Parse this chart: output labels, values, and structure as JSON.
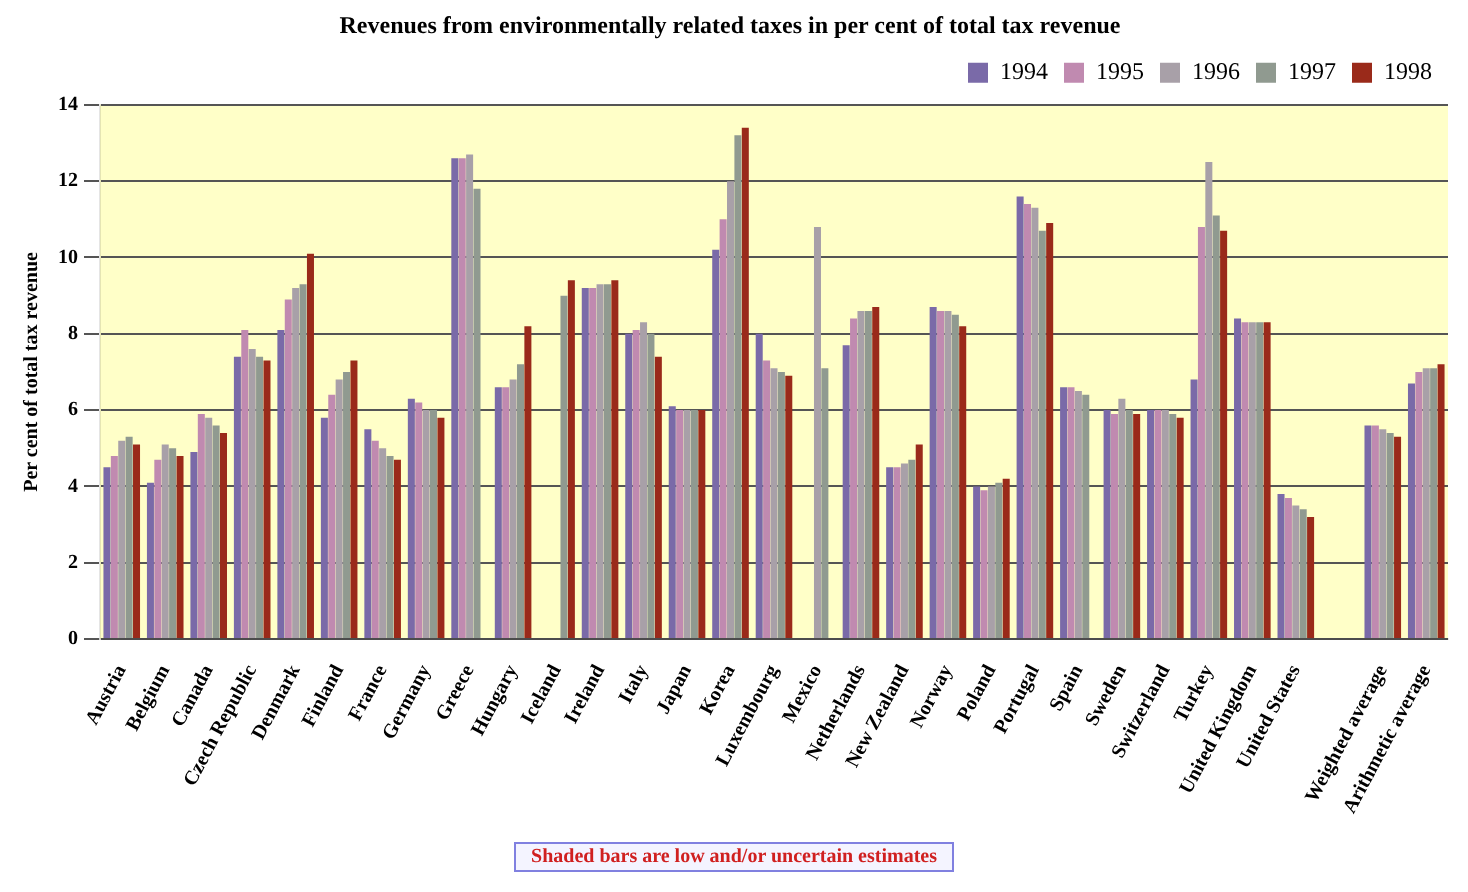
{
  "chart_data": {
    "type": "bar",
    "title": "Revenues from environmentally related taxes in per cent of total tax revenue",
    "ylabel": "Per cent of total tax revenue",
    "categories": [
      "Austria",
      "Belgium",
      "Canada",
      "Czech Republic",
      "Denmark",
      "Finland",
      "France",
      "Germany",
      "Greece",
      "Hungary",
      "Iceland",
      "Ireland",
      "Italy",
      "Japan",
      "Korea",
      "Luxembourg",
      "Mexico",
      "Netherlands",
      "New Zealand",
      "Norway",
      "Poland",
      "Portugal",
      "Spain",
      "Sweden",
      "Switzerland",
      "Turkey",
      "United Kingdom",
      "United States",
      null,
      "Weighted average",
      "Arithmetic average"
    ],
    "series": [
      {
        "name": "1994",
        "color": "#7a6aa8",
        "values": [
          4.5,
          4.1,
          4.9,
          7.4,
          8.1,
          5.8,
          5.5,
          6.3,
          12.6,
          6.6,
          null,
          9.2,
          8.0,
          6.1,
          10.2,
          8.0,
          null,
          7.7,
          4.5,
          8.7,
          4.0,
          11.6,
          6.6,
          6.0,
          6.0,
          6.8,
          8.4,
          3.8,
          null,
          5.6,
          6.7
        ]
      },
      {
        "name": "1995",
        "color": "#c08ab0",
        "values": [
          4.8,
          4.7,
          5.9,
          8.1,
          8.9,
          6.4,
          5.2,
          6.2,
          12.6,
          6.6,
          null,
          9.2,
          8.1,
          6.0,
          11.0,
          7.3,
          null,
          8.4,
          4.5,
          8.6,
          3.9,
          11.4,
          6.6,
          5.9,
          6.0,
          10.8,
          8.3,
          3.7,
          null,
          5.6,
          7.0
        ]
      },
      {
        "name": "1996",
        "color": "#a8a0a8",
        "values": [
          5.2,
          5.1,
          5.8,
          7.6,
          9.2,
          6.8,
          5.0,
          6.0,
          12.7,
          6.8,
          null,
          9.3,
          8.3,
          6.0,
          12.0,
          7.1,
          10.8,
          8.6,
          4.6,
          8.6,
          4.0,
          11.3,
          6.5,
          6.3,
          6.0,
          12.5,
          8.3,
          3.5,
          null,
          5.5,
          7.1
        ]
      },
      {
        "name": "1997",
        "color": "#909a90",
        "values": [
          5.3,
          5.0,
          5.6,
          7.4,
          9.3,
          7.0,
          4.8,
          6.0,
          11.8,
          7.2,
          9.0,
          9.3,
          8.0,
          6.0,
          13.2,
          7.0,
          7.1,
          8.6,
          4.7,
          8.5,
          4.1,
          10.7,
          6.4,
          6.0,
          5.9,
          11.1,
          8.3,
          3.4,
          null,
          5.4,
          7.1
        ]
      },
      {
        "name": "1998",
        "color": "#9a2a1a",
        "values": [
          5.1,
          4.8,
          5.4,
          7.3,
          10.1,
          7.3,
          4.7,
          5.8,
          null,
          8.2,
          9.4,
          9.4,
          7.4,
          6.0,
          13.4,
          6.9,
          null,
          8.7,
          5.1,
          8.2,
          4.2,
          10.9,
          null,
          5.9,
          5.8,
          10.7,
          8.3,
          3.2,
          null,
          5.3,
          7.2
        ]
      }
    ],
    "ylim": [
      0,
      14
    ],
    "yticks": [
      0,
      2,
      4,
      6,
      8,
      10,
      12,
      14
    ],
    "grid": "y",
    "legend": "top right",
    "annotations": [
      "Shaded bars are low and/or uncertain estimates"
    ]
  }
}
